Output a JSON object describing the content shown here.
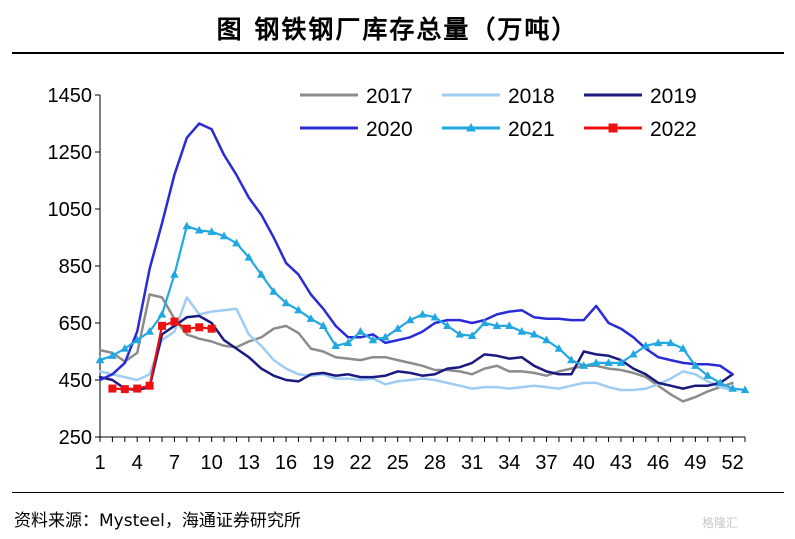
{
  "header": {
    "title": "图  钢铁钢厂库存总量（万吨）"
  },
  "footer": {
    "source": "资料来源：Mysteel，海通证券研究所",
    "watermark": "格隆汇"
  },
  "chart_data": {
    "type": "line",
    "title": "图  钢铁钢厂库存总量（万吨）",
    "xlabel": "",
    "ylabel": "",
    "xlim": [
      1,
      53
    ],
    "ylim": [
      250,
      1450
    ],
    "x_ticks": [
      1,
      4,
      7,
      10,
      13,
      16,
      19,
      22,
      25,
      28,
      31,
      34,
      37,
      40,
      43,
      46,
      49,
      52
    ],
    "y_ticks": [
      250,
      450,
      650,
      850,
      1050,
      1250,
      1450
    ],
    "grid": false,
    "legend_position": "top-right",
    "series": [
      {
        "name": "2017",
        "color": "#8c8c8c",
        "marker": "none",
        "x": [
          1,
          2,
          3,
          4,
          5,
          6,
          7,
          8,
          9,
          10,
          11,
          12,
          13,
          14,
          15,
          16,
          17,
          18,
          19,
          20,
          21,
          22,
          23,
          24,
          25,
          26,
          27,
          28,
          29,
          30,
          31,
          32,
          33,
          34,
          35,
          36,
          37,
          38,
          39,
          40,
          41,
          42,
          43,
          44,
          45,
          46,
          47,
          48,
          49,
          50,
          51,
          52
        ],
        "values": [
          555,
          545,
          515,
          545,
          750,
          740,
          665,
          610,
          595,
          585,
          570,
          565,
          585,
          600,
          630,
          640,
          615,
          560,
          550,
          530,
          525,
          520,
          530,
          530,
          520,
          510,
          500,
          485,
          485,
          480,
          470,
          490,
          500,
          480,
          480,
          475,
          465,
          480,
          490,
          500,
          500,
          490,
          485,
          475,
          460,
          430,
          400,
          375,
          390,
          410,
          425,
          440
        ]
      },
      {
        "name": "2018",
        "color": "#9fcdf2",
        "marker": "none",
        "x": [
          1,
          2,
          3,
          4,
          5,
          6,
          7,
          8,
          9,
          10,
          11,
          12,
          13,
          14,
          15,
          16,
          17,
          18,
          19,
          20,
          21,
          22,
          23,
          24,
          25,
          26,
          27,
          28,
          29,
          30,
          31,
          32,
          33,
          34,
          35,
          36,
          37,
          38,
          39,
          40,
          41,
          42,
          43,
          44,
          45,
          46,
          47,
          48,
          49,
          50,
          51,
          52
        ],
        "values": [
          480,
          470,
          460,
          450,
          470,
          590,
          620,
          740,
          680,
          690,
          695,
          700,
          610,
          570,
          520,
          490,
          470,
          465,
          470,
          455,
          455,
          450,
          455,
          435,
          445,
          450,
          455,
          450,
          440,
          430,
          420,
          425,
          425,
          420,
          425,
          430,
          425,
          420,
          430,
          440,
          440,
          425,
          415,
          415,
          420,
          435,
          455,
          480,
          470,
          445,
          425,
          415
        ]
      },
      {
        "name": "2019",
        "color": "#1a1a80",
        "marker": "none",
        "x": [
          1,
          2,
          3,
          4,
          5,
          6,
          7,
          8,
          9,
          10,
          11,
          12,
          13,
          14,
          15,
          16,
          17,
          18,
          19,
          20,
          21,
          22,
          23,
          24,
          25,
          26,
          27,
          28,
          29,
          30,
          31,
          32,
          33,
          34,
          35,
          36,
          37,
          38,
          39,
          40,
          41,
          42,
          43,
          44,
          45,
          46,
          47,
          48,
          49,
          50,
          51,
          52
        ],
        "values": [
          460,
          450,
          420,
          415,
          425,
          610,
          640,
          670,
          675,
          650,
          590,
          560,
          530,
          490,
          465,
          450,
          445,
          470,
          475,
          465,
          470,
          460,
          460,
          465,
          480,
          475,
          465,
          470,
          490,
          495,
          510,
          540,
          535,
          525,
          530,
          500,
          480,
          470,
          470,
          550,
          540,
          535,
          520,
          490,
          470,
          440,
          430,
          420,
          430,
          430,
          440,
          470
        ]
      },
      {
        "name": "2020",
        "color": "#2b2bd6",
        "marker": "none",
        "x": [
          1,
          2,
          3,
          4,
          5,
          6,
          7,
          8,
          9,
          10,
          11,
          12,
          13,
          14,
          15,
          16,
          17,
          18,
          19,
          20,
          21,
          22,
          23,
          24,
          25,
          26,
          27,
          28,
          29,
          30,
          31,
          32,
          33,
          34,
          35,
          36,
          37,
          38,
          39,
          40,
          41,
          42,
          43,
          44,
          45,
          46,
          47,
          48,
          49,
          50,
          51,
          52
        ],
        "values": [
          450,
          470,
          510,
          620,
          840,
          1000,
          1170,
          1300,
          1350,
          1330,
          1240,
          1170,
          1090,
          1030,
          950,
          860,
          820,
          750,
          700,
          640,
          600,
          600,
          610,
          580,
          590,
          600,
          620,
          650,
          660,
          660,
          650,
          660,
          680,
          690,
          695,
          670,
          665,
          665,
          660,
          660,
          710,
          650,
          630,
          600,
          560,
          530,
          520,
          510,
          505,
          505,
          500,
          470
        ]
      },
      {
        "name": "2021",
        "color": "#22a8e0",
        "marker": "triangle",
        "x": [
          1,
          2,
          3,
          4,
          5,
          6,
          7,
          8,
          9,
          10,
          11,
          12,
          13,
          14,
          15,
          16,
          17,
          18,
          19,
          20,
          21,
          22,
          23,
          24,
          25,
          26,
          27,
          28,
          29,
          30,
          31,
          32,
          33,
          34,
          35,
          36,
          37,
          38,
          39,
          40,
          41,
          42,
          43,
          44,
          45,
          46,
          47,
          48,
          49,
          50,
          51,
          52,
          53
        ],
        "values": [
          520,
          535,
          560,
          590,
          620,
          680,
          820,
          990,
          975,
          970,
          955,
          930,
          880,
          820,
          760,
          720,
          695,
          665,
          640,
          570,
          580,
          620,
          590,
          600,
          630,
          660,
          680,
          670,
          640,
          610,
          605,
          650,
          640,
          640,
          620,
          610,
          590,
          560,
          520,
          500,
          510,
          510,
          510,
          540,
          570,
          580,
          580,
          560,
          500,
          465,
          440,
          420,
          415
        ]
      },
      {
        "name": "2022",
        "color": "#ee1111",
        "marker": "square",
        "x": [
          2,
          3,
          4,
          5,
          6,
          7,
          8,
          9,
          10
        ],
        "values": [
          420,
          418,
          420,
          430,
          640,
          655,
          630,
          635,
          630
        ]
      }
    ]
  }
}
